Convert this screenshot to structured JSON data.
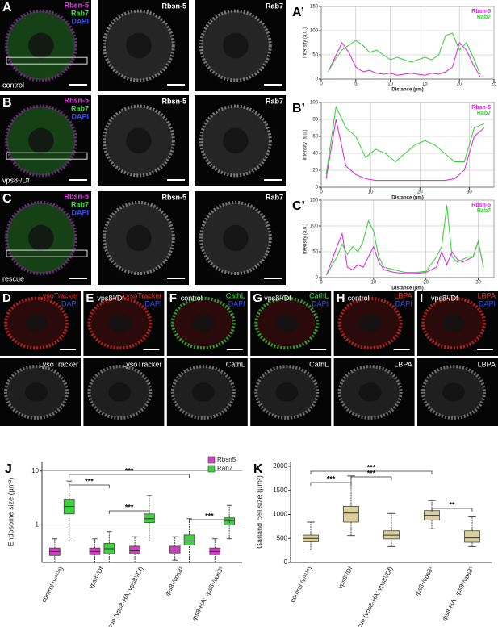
{
  "panels": [
    {
      "letter": "A",
      "condition": "control",
      "merge": [
        "Rbsn-5",
        "Rab7",
        "DAPI"
      ],
      "merge_colors": [
        "#e040e0",
        "#40e040",
        "#3050ff"
      ],
      "single": [
        "Rbsn-5",
        "Rab7"
      ]
    },
    {
      "letter": "B",
      "condition": "vps8¹/Df",
      "merge": [
        "Rbsn-5",
        "Rab7",
        "DAPI"
      ],
      "merge_colors": [
        "#e040e0",
        "#40e040",
        "#3050ff"
      ],
      "single": [
        "Rbsn-5",
        "Rab7"
      ]
    },
    {
      "letter": "C",
      "condition": "rescue",
      "merge": [
        "Rbsn-5",
        "Rab7",
        "DAPI"
      ],
      "merge_colors": [
        "#e040e0",
        "#40e040",
        "#3050ff"
      ],
      "single": [
        "Rbsn-5",
        "Rab7"
      ]
    }
  ],
  "small_panels": [
    {
      "letter": "D",
      "merge": [
        "LysoTracker",
        "DAPI"
      ],
      "merge_colors": [
        "#ff3030",
        "#3050ff"
      ],
      "single": "LysoTracker"
    },
    {
      "letter": "E",
      "condition": "vps8¹/Df",
      "merge": [
        "LysoTracker",
        "DAPI"
      ],
      "merge_colors": [
        "#ff3030",
        "#3050ff"
      ],
      "single": "LysoTracker"
    },
    {
      "letter": "F",
      "condition": "control",
      "merge": [
        "CathL",
        "DAPI"
      ],
      "merge_colors": [
        "#40e040",
        "#3050ff"
      ],
      "single": "CathL"
    },
    {
      "letter": "G",
      "condition": "vps8¹/Df",
      "merge": [
        "CathL",
        "DAPI"
      ],
      "merge_colors": [
        "#40e040",
        "#3050ff"
      ],
      "single": "CathL"
    },
    {
      "letter": "H",
      "condition": "control",
      "merge": [
        "LBPA",
        "DAPI"
      ],
      "merge_colors": [
        "#ff3030",
        "#3050ff"
      ],
      "single": "LBPA"
    },
    {
      "letter": "I",
      "condition": "vps8¹/Df",
      "merge": [
        "LBPA",
        "DAPI"
      ],
      "merge_colors": [
        "#ff3030",
        "#3050ff"
      ],
      "single": "LBPA"
    }
  ],
  "chart_data": [
    {
      "type": "line",
      "label": "A’",
      "xlabel": "Distance (µm)",
      "ylabel": "Intensity (a.u.)",
      "x": [
        1,
        2,
        3,
        4,
        5,
        6,
        7,
        8,
        9,
        10,
        11,
        12,
        13,
        14,
        15,
        16,
        17,
        18,
        19,
        20,
        21,
        22,
        23
      ],
      "series": [
        {
          "name": "Rbsn-5",
          "color": "#e020e0",
          "values": [
            15,
            45,
            75,
            55,
            25,
            15,
            18,
            12,
            10,
            12,
            8,
            10,
            12,
            10,
            8,
            12,
            10,
            15,
            25,
            75,
            60,
            30,
            5
          ]
        },
        {
          "name": "Rab7",
          "color": "#30d030",
          "values": [
            15,
            40,
            60,
            70,
            80,
            70,
            55,
            60,
            50,
            40,
            45,
            40,
            35,
            40,
            45,
            40,
            50,
            90,
            95,
            60,
            75,
            45,
            10
          ]
        }
      ],
      "xlim": [
        0,
        25
      ],
      "ylim": [
        0,
        150
      ],
      "xticks": [
        0,
        5,
        10,
        15,
        20,
        25
      ],
      "yticks": [
        0,
        50,
        100,
        150
      ],
      "grid": true,
      "legend": "upper right"
    },
    {
      "type": "line",
      "label": "B’",
      "xlabel": "Distance (µm)",
      "ylabel": "Intensity (a.u.)",
      "x": [
        1,
        3,
        5,
        7,
        9,
        11,
        13,
        15,
        17,
        19,
        21,
        23,
        25,
        27,
        29,
        31,
        33
      ],
      "series": [
        {
          "name": "Rbsn-5",
          "color": "#e020e0",
          "values": [
            10,
            80,
            25,
            15,
            10,
            8,
            8,
            8,
            8,
            8,
            8,
            8,
            8,
            10,
            20,
            60,
            70
          ]
        },
        {
          "name": "Rab7",
          "color": "#30d030",
          "values": [
            15,
            95,
            70,
            60,
            35,
            45,
            40,
            30,
            40,
            50,
            55,
            50,
            40,
            30,
            30,
            70,
            75
          ]
        }
      ],
      "xlim": [
        0,
        35
      ],
      "ylim": [
        0,
        100
      ],
      "xticks": [
        0,
        10,
        20,
        30
      ],
      "yticks": [
        0,
        20,
        40,
        60,
        80,
        100
      ],
      "grid": true,
      "legend": "upper right"
    },
    {
      "type": "line",
      "label": "C’",
      "xlabel": "Distance (µm)",
      "ylabel": "Intensity (a.u.)",
      "x": [
        1,
        3,
        4,
        5,
        6,
        7,
        8,
        9,
        10,
        11,
        12,
        14,
        16,
        18,
        20,
        22,
        23,
        24,
        25,
        26,
        27,
        28,
        29,
        30,
        31
      ],
      "series": [
        {
          "name": "Rbsn-5",
          "color": "#e020e0",
          "values": [
            5,
            60,
            85,
            20,
            15,
            25,
            20,
            40,
            60,
            30,
            15,
            10,
            8,
            8,
            10,
            20,
            50,
            25,
            50,
            35,
            30,
            35,
            40,
            70,
            20
          ]
        },
        {
          "name": "Rab7",
          "color": "#30d030",
          "values": [
            5,
            40,
            65,
            45,
            60,
            50,
            70,
            110,
            90,
            40,
            20,
            15,
            10,
            10,
            12,
            40,
            60,
            140,
            40,
            30,
            35,
            40,
            40,
            70,
            20
          ]
        }
      ],
      "xlim": [
        0,
        33
      ],
      "ylim": [
        0,
        150
      ],
      "xticks": [
        0,
        10,
        20,
        30
      ],
      "yticks": [
        0,
        50,
        100,
        150
      ],
      "grid": true,
      "legend": "upper right"
    },
    {
      "type": "box",
      "label": "J",
      "ylabel": "Endosome size (µm²)",
      "categories": [
        "control (w¹¹¹⁸)",
        "vps8¹/Df",
        "rescue (vps8-HA; vps8¹/Df)",
        "vps8¹/vps8¹",
        "vps8-HA; vps8¹/vps8¹"
      ],
      "series": [
        {
          "name": "Rbsn5",
          "color": "#d040c0",
          "values": [
            [
              0.2,
              0.27,
              0.32,
              0.37,
              0.55
            ],
            [
              0.2,
              0.28,
              0.32,
              0.37,
              0.55
            ],
            [
              0.2,
              0.29,
              0.33,
              0.4,
              0.6
            ],
            [
              0.22,
              0.3,
              0.34,
              0.4,
              0.6
            ],
            [
              0.2,
              0.28,
              0.32,
              0.37,
              0.55
            ]
          ]
        },
        {
          "name": "Rab7",
          "color": "#40d040",
          "values": [
            [
              0.5,
              1.6,
              2.2,
              3.0,
              6.5
            ],
            [
              0.2,
              0.29,
              0.36,
              0.45,
              0.75
            ],
            [
              0.5,
              1.1,
              1.3,
              1.6,
              3.5
            ],
            [
              0.2,
              0.42,
              0.5,
              0.65,
              1.3
            ],
            [
              0.55,
              1.0,
              1.2,
              1.35,
              2.3
            ]
          ]
        }
      ],
      "ylim": [
        0.2,
        15
      ],
      "yticks": [
        1,
        10
      ],
      "log": true,
      "grid": true,
      "legend": "upper right",
      "annotations": [
        {
          "text": "***",
          "from": 0,
          "to": 1
        },
        {
          "text": "***",
          "from": 0,
          "to": 3
        },
        {
          "text": "***",
          "from": 1,
          "to": 2
        },
        {
          "text": "***",
          "from": 3,
          "to": 4
        }
      ]
    },
    {
      "type": "box",
      "label": "K",
      "ylabel": "Garland cell size (µm²)",
      "categories": [
        "control (w¹¹¹⁸)",
        "vps8¹/Df",
        "rescue (vps8-HA; vps8¹/Df)",
        "vps8¹/vps8¹",
        "vps8-HA; vps8¹/vps8¹"
      ],
      "series": [
        {
          "color": "#d8cf9c",
          "values": [
            [
              260,
              430,
              500,
              570,
              840
            ],
            [
              560,
              840,
              1030,
              1170,
              1800
            ],
            [
              330,
              490,
              570,
              660,
              1020
            ],
            [
              700,
              880,
              980,
              1080,
              1290
            ],
            [
              330,
              420,
              510,
              660,
              950
            ]
          ]
        }
      ],
      "ylim": [
        0,
        2100
      ],
      "yticks": [
        0,
        500,
        1000,
        1500,
        2000
      ],
      "log": false,
      "grid": false,
      "annotations": [
        {
          "text": "***",
          "from": 0,
          "to": 1
        },
        {
          "text": "***",
          "from": 0,
          "to": 3
        },
        {
          "text": "***",
          "from": 1,
          "to": 2
        },
        {
          "text": "**",
          "from": 3,
          "to": 4
        }
      ]
    }
  ]
}
